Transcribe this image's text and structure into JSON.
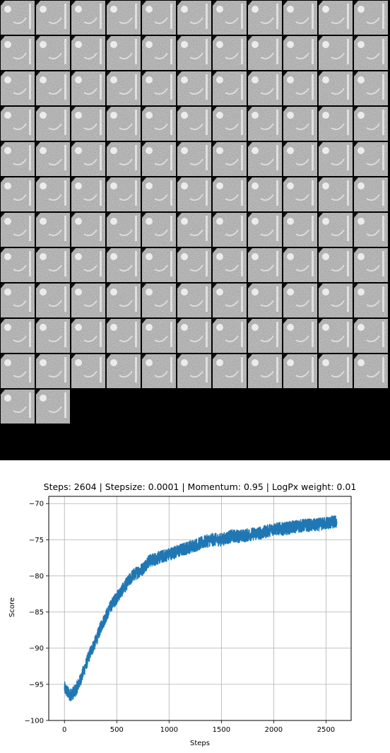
{
  "tiles": {
    "columns": 11,
    "rows": 13,
    "count": 123,
    "tile_kind": "grayscale-noise-sample",
    "last_row_first_tile_kind": "grayscale-reference-image",
    "background": "#000000"
  },
  "chart_data": {
    "type": "line",
    "title": "Steps: 2604 | Stepsize: 0.0001 | Momentum: 0.95 | LogPx weight: 0.01",
    "xlabel": "Steps",
    "ylabel": "Score",
    "xlim": [
      -150,
      2740
    ],
    "ylim": [
      -100,
      -69
    ],
    "xticks": [
      0,
      500,
      1000,
      1500,
      2000,
      2500
    ],
    "yticks": [
      -100,
      -95,
      -90,
      -85,
      -80,
      -75,
      -70
    ],
    "xtick_labels": [
      "0",
      "500",
      "1000",
      "1500",
      "2000",
      "2500"
    ],
    "ytick_labels": [
      "−100",
      "−95",
      "−90",
      "−85",
      "−80",
      "−75",
      "−70"
    ],
    "grid": true,
    "series": [
      {
        "color": "#1f77b4",
        "trend": {
          "x": [
            0,
            50,
            100,
            150,
            200,
            250,
            300,
            350,
            400,
            450,
            500,
            550,
            600,
            650,
            700,
            750,
            800,
            900,
            1000,
            1100,
            1200,
            1300,
            1400,
            1500,
            1600,
            1700,
            1800,
            1900,
            2000,
            2100,
            2200,
            2300,
            2400,
            2500,
            2604
          ],
          "y": [
            -95.5,
            -96.5,
            -96.0,
            -94.5,
            -92.5,
            -90.5,
            -89.0,
            -87.0,
            -85.5,
            -84.0,
            -83.0,
            -82.0,
            -81.0,
            -80.0,
            -79.5,
            -79.0,
            -78.0,
            -77.5,
            -77.0,
            -76.5,
            -76.0,
            -75.5,
            -75.0,
            -75.0,
            -74.5,
            -74.5,
            -74.2,
            -74.0,
            -73.5,
            -73.5,
            -73.2,
            -73.0,
            -73.0,
            -72.7,
            -72.5
          ]
        },
        "noise_amplitude": 0.9,
        "points": 2604
      }
    ]
  }
}
